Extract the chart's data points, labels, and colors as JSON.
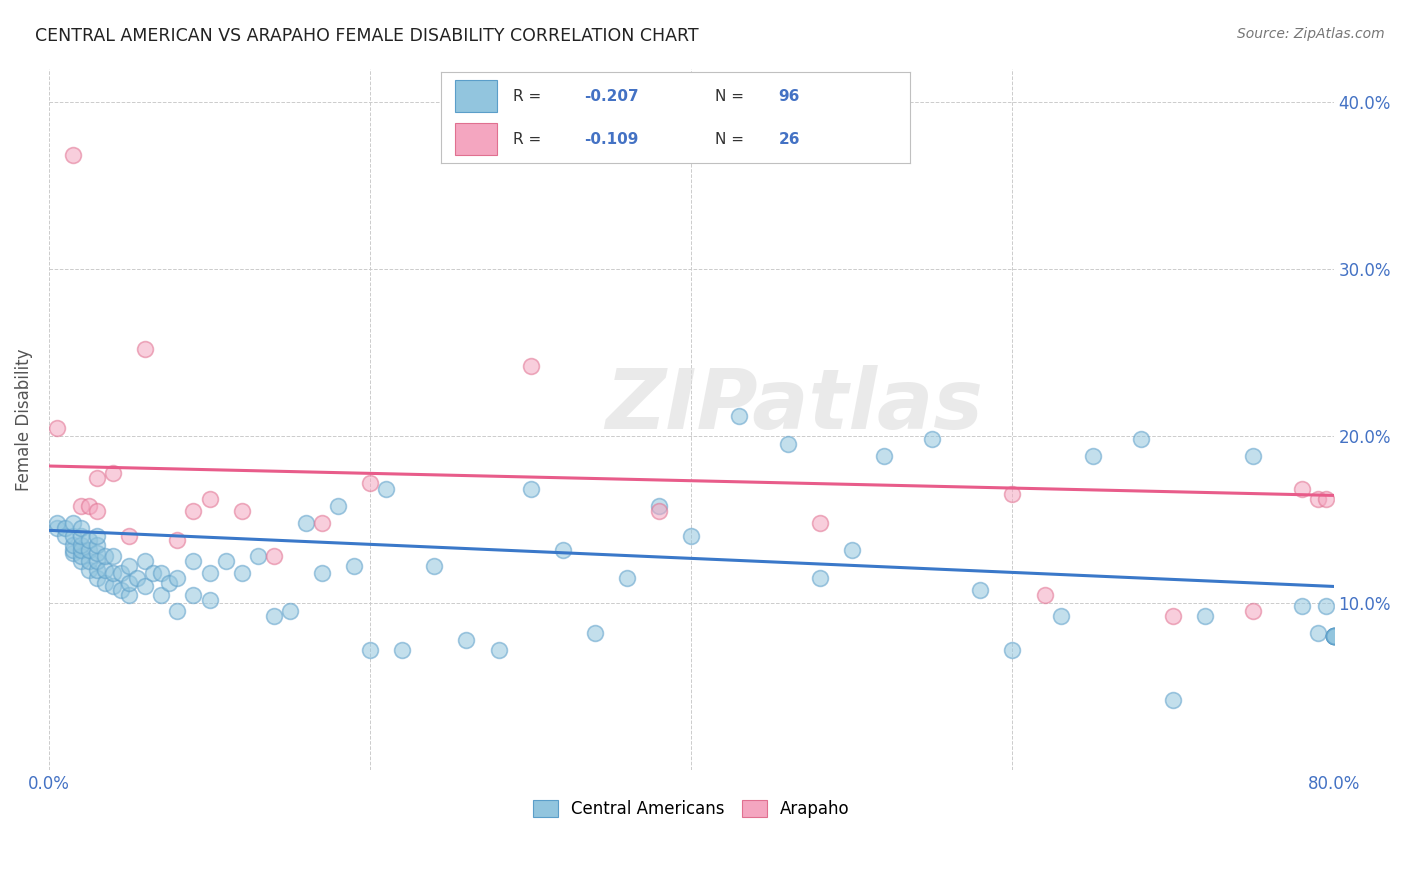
{
  "title": "CENTRAL AMERICAN VS ARAPAHO FEMALE DISABILITY CORRELATION CHART",
  "source": "Source: ZipAtlas.com",
  "ylabel": "Female Disability",
  "watermark": "ZIPatlas",
  "xlim": [
    0.0,
    0.8
  ],
  "ylim": [
    0.0,
    0.42
  ],
  "blue_color": "#92c5de",
  "pink_color": "#f4a6c0",
  "blue_edge_color": "#5b9ec9",
  "pink_edge_color": "#e07090",
  "blue_line_color": "#3a78c9",
  "pink_line_color": "#e85c8a",
  "axis_color": "#4472c4",
  "grid_color": "#cccccc",
  "legend_text_color": "#4472c4",
  "legend_label_color": "#333333",
  "central_americans_x": [
    0.005,
    0.005,
    0.01,
    0.01,
    0.015,
    0.015,
    0.015,
    0.015,
    0.015,
    0.02,
    0.02,
    0.02,
    0.02,
    0.02,
    0.02,
    0.025,
    0.025,
    0.025,
    0.025,
    0.03,
    0.03,
    0.03,
    0.03,
    0.03,
    0.03,
    0.035,
    0.035,
    0.035,
    0.04,
    0.04,
    0.04,
    0.045,
    0.045,
    0.05,
    0.05,
    0.05,
    0.055,
    0.06,
    0.06,
    0.065,
    0.07,
    0.07,
    0.075,
    0.08,
    0.08,
    0.09,
    0.09,
    0.1,
    0.1,
    0.11,
    0.12,
    0.13,
    0.14,
    0.15,
    0.16,
    0.17,
    0.18,
    0.19,
    0.2,
    0.21,
    0.22,
    0.24,
    0.26,
    0.28,
    0.3,
    0.32,
    0.34,
    0.36,
    0.38,
    0.4,
    0.43,
    0.46,
    0.48,
    0.5,
    0.52,
    0.55,
    0.58,
    0.6,
    0.63,
    0.65,
    0.68,
    0.7,
    0.72,
    0.75,
    0.78,
    0.79,
    0.795,
    0.8,
    0.8,
    0.8,
    0.8,
    0.8,
    0.8,
    0.8,
    0.8
  ],
  "central_americans_y": [
    0.145,
    0.148,
    0.14,
    0.145,
    0.13,
    0.132,
    0.135,
    0.14,
    0.148,
    0.125,
    0.128,
    0.132,
    0.135,
    0.14,
    0.145,
    0.12,
    0.125,
    0.132,
    0.138,
    0.115,
    0.12,
    0.125,
    0.13,
    0.135,
    0.14,
    0.112,
    0.12,
    0.128,
    0.11,
    0.118,
    0.128,
    0.108,
    0.118,
    0.105,
    0.112,
    0.122,
    0.115,
    0.11,
    0.125,
    0.118,
    0.105,
    0.118,
    0.112,
    0.095,
    0.115,
    0.105,
    0.125,
    0.102,
    0.118,
    0.125,
    0.118,
    0.128,
    0.092,
    0.095,
    0.148,
    0.118,
    0.158,
    0.122,
    0.072,
    0.168,
    0.072,
    0.122,
    0.078,
    0.072,
    0.168,
    0.132,
    0.082,
    0.115,
    0.158,
    0.14,
    0.212,
    0.195,
    0.115,
    0.132,
    0.188,
    0.198,
    0.108,
    0.072,
    0.092,
    0.188,
    0.198,
    0.042,
    0.092,
    0.188,
    0.098,
    0.082,
    0.098,
    0.08,
    0.08,
    0.08,
    0.08,
    0.08,
    0.08,
    0.08,
    0.08
  ],
  "arapaho_x": [
    0.005,
    0.015,
    0.02,
    0.025,
    0.03,
    0.03,
    0.04,
    0.05,
    0.06,
    0.08,
    0.09,
    0.1,
    0.12,
    0.14,
    0.17,
    0.2,
    0.3,
    0.38,
    0.48,
    0.6,
    0.62,
    0.7,
    0.75,
    0.78,
    0.79,
    0.795
  ],
  "arapaho_y": [
    0.205,
    0.368,
    0.158,
    0.158,
    0.155,
    0.175,
    0.178,
    0.14,
    0.252,
    0.138,
    0.155,
    0.162,
    0.155,
    0.128,
    0.148,
    0.172,
    0.242,
    0.155,
    0.148,
    0.165,
    0.105,
    0.092,
    0.095,
    0.168,
    0.162,
    0.162
  ],
  "blue_intercept": 0.1435,
  "blue_slope": -0.042,
  "pink_intercept": 0.182,
  "pink_slope": -0.022,
  "marker_size": 130,
  "alpha": 0.55,
  "edge_alpha": 0.9,
  "edge_width": 1.2
}
